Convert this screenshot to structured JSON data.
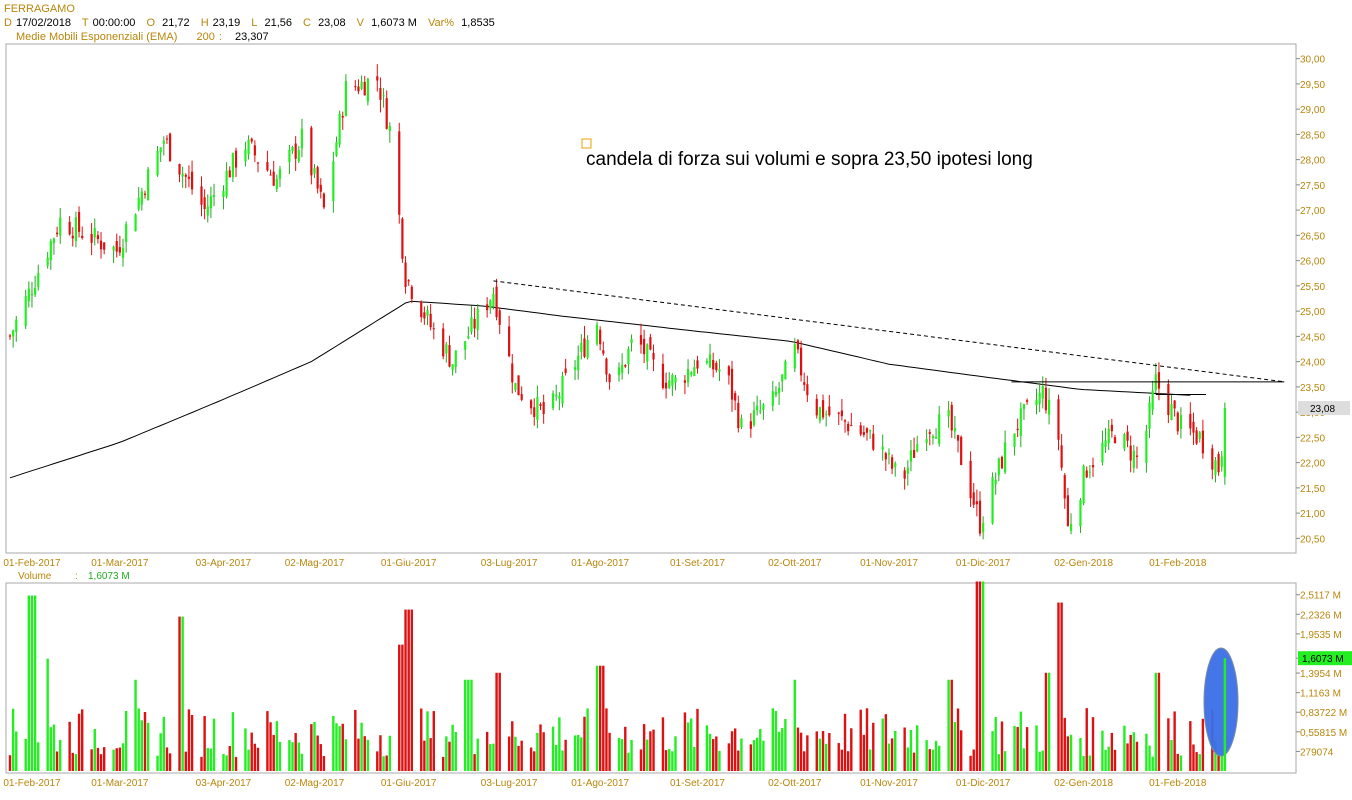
{
  "header": {
    "symbol": "FERRAGAMO",
    "fields": [
      {
        "key": "D",
        "value": "17/02/2018"
      },
      {
        "key": "T",
        "value": "00:00:00"
      },
      {
        "key": "O",
        "value": "21,72"
      },
      {
        "key": "H",
        "value": "23,19"
      },
      {
        "key": "L",
        "value": "21,56"
      },
      {
        "key": "C",
        "value": "23,08"
      },
      {
        "key": "V",
        "value": "1,6073 M"
      },
      {
        "key": "Var%",
        "value": "1,8535"
      }
    ],
    "ema_label": "Medie Mobili Esponenziali (EMA)",
    "ema_period": "200",
    "ema_value": "23,307"
  },
  "volume_header": {
    "label": "Volume",
    "value": "1,6073 M"
  },
  "annotation": "candela di forza sui volumi e sopra 23,50 ipotesi long",
  "colors": {
    "up": "#22ee22",
    "down": "#dd1111",
    "axis_text": "#b8860b",
    "highlight": "#3a6fe6",
    "last_badge": "#dddddd",
    "vol_badge": "#22ee22"
  },
  "chart_data": [
    {
      "type": "candlestick",
      "title": "FERRAGAMO",
      "x_tick_labels": [
        "01-Feb-2017",
        "01-Mar-2017",
        "03-Apr-2017",
        "02-Mag-2017",
        "01-Giu-2017",
        "03-Lug-2017",
        "01-Ago-2017",
        "01-Set-2017",
        "02-Ott-2017",
        "01-Nov-2017",
        "01-Dic-2017",
        "02-Gen-2018",
        "01-Feb-2018"
      ],
      "y_tick_labels": [
        "30,00",
        "29,50",
        "29,00",
        "28,50",
        "28,00",
        "27,50",
        "27,00",
        "26,50",
        "26,00",
        "25,50",
        "25,00",
        "24,50",
        "24,00",
        "23,50",
        "23,00",
        "22,50",
        "22,00",
        "21,50",
        "21,00",
        "20,50"
      ],
      "ylim": [
        20.25,
        30.25
      ],
      "last_price_label": "23,08",
      "ohlc_keypoints": [
        {
          "date": "2017-01-25",
          "close": 24.5
        },
        {
          "date": "2017-02-10",
          "close": 26.8
        },
        {
          "date": "2017-02-28",
          "close": 26.2
        },
        {
          "date": "2017-03-15",
          "close": 28.4
        },
        {
          "date": "2017-03-28",
          "close": 27.0
        },
        {
          "date": "2017-04-10",
          "close": 28.3
        },
        {
          "date": "2017-04-20",
          "close": 27.6
        },
        {
          "date": "2017-04-28",
          "close": 28.4
        },
        {
          "date": "2017-05-05",
          "close": 27.0
        },
        {
          "date": "2017-05-12",
          "close": 29.4
        },
        {
          "date": "2017-05-22",
          "close": 29.6
        },
        {
          "date": "2017-05-26",
          "close": 28.6
        },
        {
          "date": "2017-05-31",
          "close": 25.7
        },
        {
          "date": "2017-06-08",
          "close": 24.7
        },
        {
          "date": "2017-06-15",
          "close": 24.0
        },
        {
          "date": "2017-06-28",
          "close": 25.4
        },
        {
          "date": "2017-07-05",
          "close": 23.5
        },
        {
          "date": "2017-07-15",
          "close": 22.9
        },
        {
          "date": "2017-07-31",
          "close": 24.8
        },
        {
          "date": "2017-08-05",
          "close": 23.4
        },
        {
          "date": "2017-08-12",
          "close": 24.5
        },
        {
          "date": "2017-08-20",
          "close": 23.7
        },
        {
          "date": "2017-08-25",
          "close": 23.6
        },
        {
          "date": "2017-09-01",
          "close": 24.0
        },
        {
          "date": "2017-09-10",
          "close": 23.8
        },
        {
          "date": "2017-09-15",
          "close": 22.7
        },
        {
          "date": "2017-09-25",
          "close": 23.2
        },
        {
          "date": "2017-10-02",
          "close": 24.2
        },
        {
          "date": "2017-10-08",
          "close": 23.1
        },
        {
          "date": "2017-10-18",
          "close": 22.8
        },
        {
          "date": "2017-10-28",
          "close": 22.4
        },
        {
          "date": "2017-11-05",
          "close": 21.6
        },
        {
          "date": "2017-11-12",
          "close": 22.7
        },
        {
          "date": "2017-11-20",
          "close": 22.8
        },
        {
          "date": "2017-11-25",
          "close": 21.9
        },
        {
          "date": "2017-11-30",
          "close": 20.8
        },
        {
          "date": "2017-12-10",
          "close": 22.6
        },
        {
          "date": "2017-12-20",
          "close": 23.4
        },
        {
          "date": "2017-12-25",
          "close": 22.5
        },
        {
          "date": "2017-12-28",
          "close": 20.7
        },
        {
          "date": "2018-01-03",
          "close": 21.9
        },
        {
          "date": "2018-01-12",
          "close": 22.6
        },
        {
          "date": "2018-01-20",
          "close": 22.0
        },
        {
          "date": "2018-01-25",
          "close": 23.6
        },
        {
          "date": "2018-02-02",
          "close": 22.7
        },
        {
          "date": "2018-02-08",
          "close": 22.5
        },
        {
          "date": "2018-02-14",
          "close": 21.9
        },
        {
          "date": "2018-02-17",
          "close": 23.08
        }
      ],
      "ema200_keypoints": [
        {
          "date": "2017-01-25",
          "value": 21.7
        },
        {
          "date": "2017-03-01",
          "value": 22.4
        },
        {
          "date": "2017-04-01",
          "value": 23.2
        },
        {
          "date": "2017-05-01",
          "value": 24.0
        },
        {
          "date": "2017-06-01",
          "value": 25.2
        },
        {
          "date": "2017-06-25",
          "value": 25.1
        },
        {
          "date": "2017-07-20",
          "value": 24.9
        },
        {
          "date": "2017-09-01",
          "value": 24.6
        },
        {
          "date": "2017-10-01",
          "value": 24.4
        },
        {
          "date": "2017-11-01",
          "value": 23.95
        },
        {
          "date": "2017-12-01",
          "value": 23.7
        },
        {
          "date": "2018-01-01",
          "value": 23.45
        },
        {
          "date": "2018-02-06",
          "value": 23.33
        }
      ],
      "trendline_dashed": {
        "from": {
          "date": "2017-06-28",
          "value": 25.6
        },
        "to": {
          "date": "2018-02-19",
          "value": 23.6
        }
      },
      "resistance_line": {
        "from": {
          "date": "2017-12-10",
          "value": 23.6
        },
        "to": {
          "date": "2018-02-19",
          "value": 23.6
        }
      },
      "support_segment": {
        "from": {
          "date": "2018-01-25",
          "value": 23.35
        },
        "to": {
          "date": "2018-02-10",
          "value": 23.35
        }
      }
    },
    {
      "type": "bar",
      "title": "Volume",
      "y_tick_labels": [
        "2,5117 M",
        "2,2326 M",
        "1,9535 M",
        "1,6073 M",
        "1,3954 M",
        "1,1163 M",
        "0,83722 M",
        "0,55815 M",
        "279074"
      ],
      "ylim": [
        0,
        2.65
      ],
      "last_value": 1.6073,
      "volume_keypoints": [
        {
          "date": "2017-02-01",
          "value": 2.5
        },
        {
          "date": "2017-02-05",
          "value": 1.6
        },
        {
          "date": "2017-03-05",
          "value": 1.3
        },
        {
          "date": "2017-03-20",
          "value": 2.2
        },
        {
          "date": "2017-05-30",
          "value": 1.8
        },
        {
          "date": "2017-06-01",
          "value": 2.3
        },
        {
          "date": "2017-06-20",
          "value": 1.3
        },
        {
          "date": "2017-06-30",
          "value": 1.4
        },
        {
          "date": "2017-08-01",
          "value": 1.5
        },
        {
          "date": "2017-10-01",
          "value": 1.3
        },
        {
          "date": "2017-11-20",
          "value": 1.3
        },
        {
          "date": "2017-11-30",
          "value": 2.7
        },
        {
          "date": "2017-12-25",
          "value": 2.4
        },
        {
          "date": "2017-12-22",
          "value": 1.4
        },
        {
          "date": "2018-01-26",
          "value": 1.4
        },
        {
          "date": "2018-02-17",
          "value": 1.6073
        }
      ]
    }
  ]
}
